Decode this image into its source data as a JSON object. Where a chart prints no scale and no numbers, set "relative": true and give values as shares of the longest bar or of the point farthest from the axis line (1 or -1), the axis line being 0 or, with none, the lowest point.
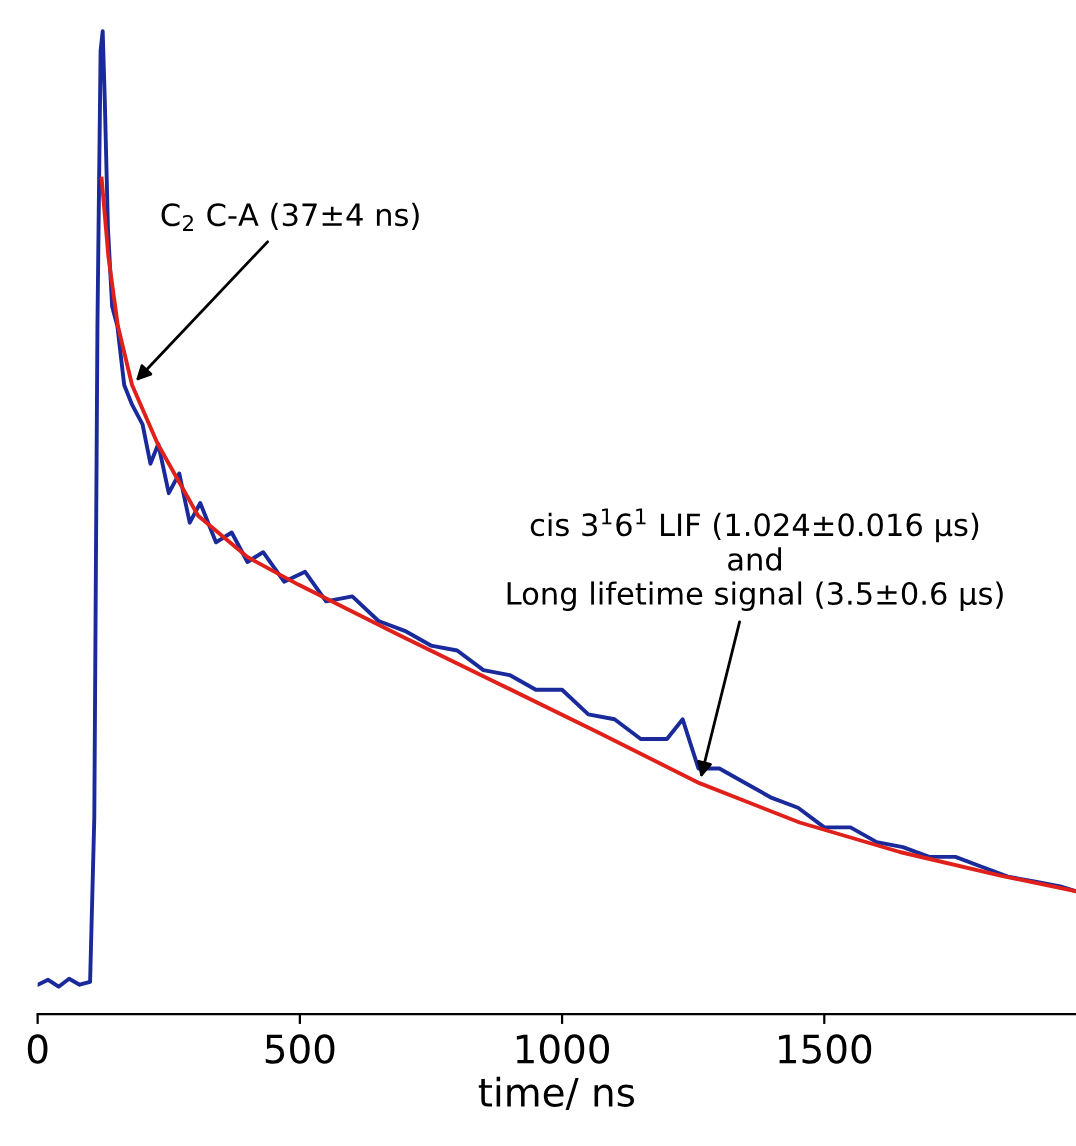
{
  "chart_data": {
    "type": "line",
    "relative": true,
    "xlabel": "time/ ns",
    "xlim": [
      0,
      1980
    ],
    "xticks": [
      0,
      500,
      1000,
      1500
    ],
    "tick_labels": "x",
    "grid": false,
    "legend": false,
    "marker": "none",
    "line_style": "solid",
    "series": [
      {
        "color": "#1a2a9a",
        "x": [
          0,
          20,
          40,
          60,
          80,
          100,
          108,
          114,
          120,
          124,
          128,
          134,
          142,
          152,
          165,
          180,
          200,
          215,
          230,
          250,
          270,
          290,
          310,
          340,
          370,
          400,
          430,
          470,
          510,
          550,
          600,
          650,
          700,
          750,
          800,
          850,
          900,
          950,
          1000,
          1050,
          1100,
          1150,
          1200,
          1230,
          1260,
          1300,
          1350,
          1400,
          1450,
          1500,
          1550,
          1600,
          1650,
          1700,
          1750,
          1800,
          1850,
          1900,
          1950,
          1980
        ],
        "values": [
          0.03,
          0.035,
          0.028,
          0.036,
          0.03,
          0.033,
          0.2,
          0.7,
          0.98,
          1.0,
          0.93,
          0.8,
          0.72,
          0.7,
          0.64,
          0.62,
          0.6,
          0.56,
          0.58,
          0.53,
          0.55,
          0.5,
          0.52,
          0.48,
          0.49,
          0.46,
          0.47,
          0.44,
          0.45,
          0.42,
          0.425,
          0.4,
          0.39,
          0.375,
          0.37,
          0.35,
          0.345,
          0.33,
          0.33,
          0.305,
          0.3,
          0.28,
          0.28,
          0.3,
          0.25,
          0.25,
          0.235,
          0.22,
          0.21,
          0.19,
          0.19,
          0.175,
          0.17,
          0.16,
          0.16,
          0.15,
          0.14,
          0.135,
          0.13,
          0.125
        ]
      },
      {
        "color": "#e0201a",
        "x": [
          122,
          135,
          153,
          180,
          229,
          306,
          400,
          497,
          688,
          880,
          1071,
          1262,
          1453,
          1644,
          1836,
          1980
        ],
        "values": [
          0.85,
          0.77,
          0.7,
          0.64,
          0.58,
          0.507,
          0.465,
          0.437,
          0.386,
          0.336,
          0.286,
          0.235,
          0.195,
          0.165,
          0.141,
          0.125
        ]
      }
    ],
    "annotations": [
      {
        "text": "C$_{2}$ C-A (37±4 ns)",
        "x": 180,
        "y": 0.64
      },
      {
        "text": "cis 3$^{1}$6$^{1}$ LIF (1.024±0.016 μs)\nand\nLong lifetime signal (3.5±0.6 μs)",
        "x": 1262,
        "y": 0.235
      }
    ]
  }
}
